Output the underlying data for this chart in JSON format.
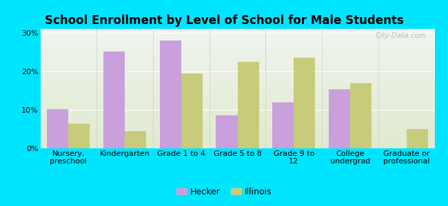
{
  "title": "School Enrollment by Level of School for Male Students",
  "categories": [
    "Nursery,\npreschool",
    "Kindergarten",
    "Grade 1 to 4",
    "Grade 5 to 8",
    "Grade 9 to\n12",
    "College\nundergrad",
    "Graduate or\nprofessional"
  ],
  "hecker": [
    10.2,
    25.2,
    28.0,
    8.5,
    12.0,
    15.3,
    0.0
  ],
  "illinois": [
    6.5,
    4.5,
    19.5,
    22.5,
    23.5,
    17.0,
    5.0
  ],
  "hecker_color": "#c9a0dc",
  "illinois_color": "#c8cc7a",
  "background_outer": "#00e5ff",
  "background_inner_top": "#f0f4ee",
  "background_inner_bottom": "#e0ead0",
  "yticks": [
    0,
    10,
    20,
    30
  ],
  "ylim": [
    0,
    31
  ],
  "bar_width": 0.38,
  "legend_hecker": "Hecker",
  "legend_illinois": "Illinois",
  "watermark": "City-Data.com",
  "title_fontsize": 12,
  "tick_fontsize": 8,
  "legend_fontsize": 9
}
